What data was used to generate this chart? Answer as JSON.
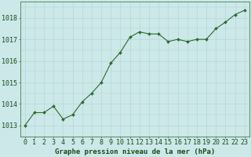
{
  "x": [
    0,
    1,
    2,
    3,
    4,
    5,
    6,
    7,
    8,
    9,
    10,
    11,
    12,
    13,
    14,
    15,
    16,
    17,
    18,
    19,
    20,
    21,
    22,
    23
  ],
  "y": [
    1013.0,
    1013.6,
    1013.6,
    1013.9,
    1013.3,
    1013.5,
    1014.1,
    1014.5,
    1015.0,
    1015.9,
    1016.4,
    1017.1,
    1017.35,
    1017.25,
    1017.25,
    1016.9,
    1017.0,
    1016.9,
    1017.0,
    1017.0,
    1017.5,
    1017.8,
    1018.15,
    1018.35
  ],
  "line_color": "#2d6a2d",
  "marker_color": "#2d6a2d",
  "bg_color": "#cce8e8",
  "grid_color": "#b0d4d4",
  "xlabel": "Graphe pression niveau de la mer (hPa)",
  "xlabel_color": "#1a4a1a",
  "ylabel_ticks": [
    1013,
    1014,
    1015,
    1016,
    1017,
    1018
  ],
  "xlim": [
    -0.5,
    23.5
  ],
  "ylim": [
    1012.5,
    1018.75
  ],
  "tick_color": "#1a4a1a",
  "axis_color": "#2d6a2d",
  "font_size_xlabel": 6.5,
  "font_size_ticks": 6.0,
  "xtick_labels": [
    "0",
    "1",
    "2",
    "3",
    "4",
    "5",
    "6",
    "7",
    "8",
    "9",
    "10",
    "11",
    "12",
    "13",
    "14",
    "15",
    "16",
    "17",
    "18",
    "19",
    "20",
    "21",
    "22",
    "23"
  ]
}
